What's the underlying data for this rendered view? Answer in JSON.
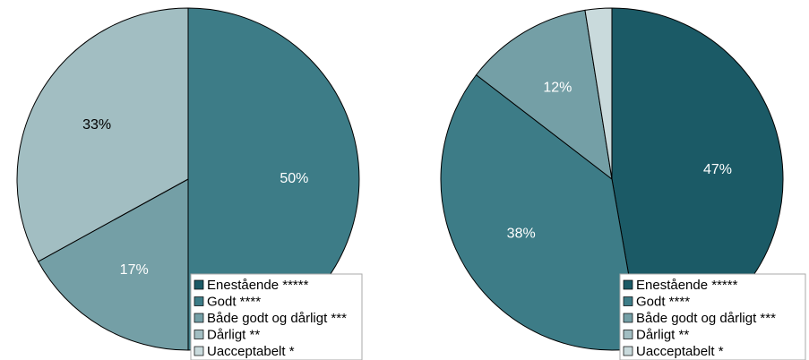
{
  "colors": {
    "enestaende": "#1b5a66",
    "godt": "#3d7c87",
    "baade": "#749fa6",
    "daarligt": "#a2bec2",
    "uacceptabelt": "#c9dadc"
  },
  "chart_data": [
    {
      "type": "pie",
      "legend_position": "bottom-right",
      "categories": [
        "Enestående *****",
        "Godt ****",
        "Både godt og dårligt ***",
        "Dårligt **",
        "Uacceptabelt *"
      ],
      "values": [
        0,
        50,
        17,
        33,
        0
      ],
      "labels": [
        "",
        "50%",
        "17%",
        "33%",
        ""
      ]
    },
    {
      "type": "pie",
      "legend_position": "bottom-right",
      "categories": [
        "Enestående *****",
        "Godt ****",
        "Både godt og dårligt ***",
        "Dårligt **",
        "Uacceptabelt *"
      ],
      "values": [
        47,
        38,
        12,
        0,
        2.5
      ],
      "labels": [
        "47%",
        "38%",
        "12%",
        "",
        ""
      ]
    }
  ]
}
